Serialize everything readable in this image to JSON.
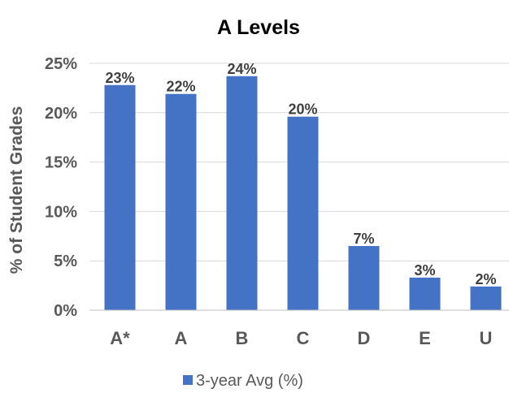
{
  "chart_data": {
    "type": "bar",
    "title": "A Levels",
    "xlabel": "",
    "ylabel": "% of Student Grades",
    "categories": [
      "A*",
      "A",
      "B",
      "C",
      "D",
      "E",
      "U"
    ],
    "series": [
      {
        "name": "3-year Avg (%)",
        "values": [
          22.8,
          21.9,
          23.7,
          19.6,
          6.5,
          3.3,
          2.4
        ],
        "labels": [
          "23%",
          "22%",
          "24%",
          "20%",
          "7%",
          "3%",
          "2%"
        ]
      }
    ],
    "ylim": [
      0,
      25
    ],
    "yticks": [
      0,
      5,
      10,
      15,
      20,
      25
    ],
    "ytick_labels": [
      "0%",
      "5%",
      "10%",
      "15%",
      "20%",
      "25%"
    ],
    "grid": true,
    "legend_position": "bottom",
    "colors": {
      "bar": "#4472C4",
      "grid": "#D9D9D9",
      "axis": "#BFBFBF"
    }
  }
}
